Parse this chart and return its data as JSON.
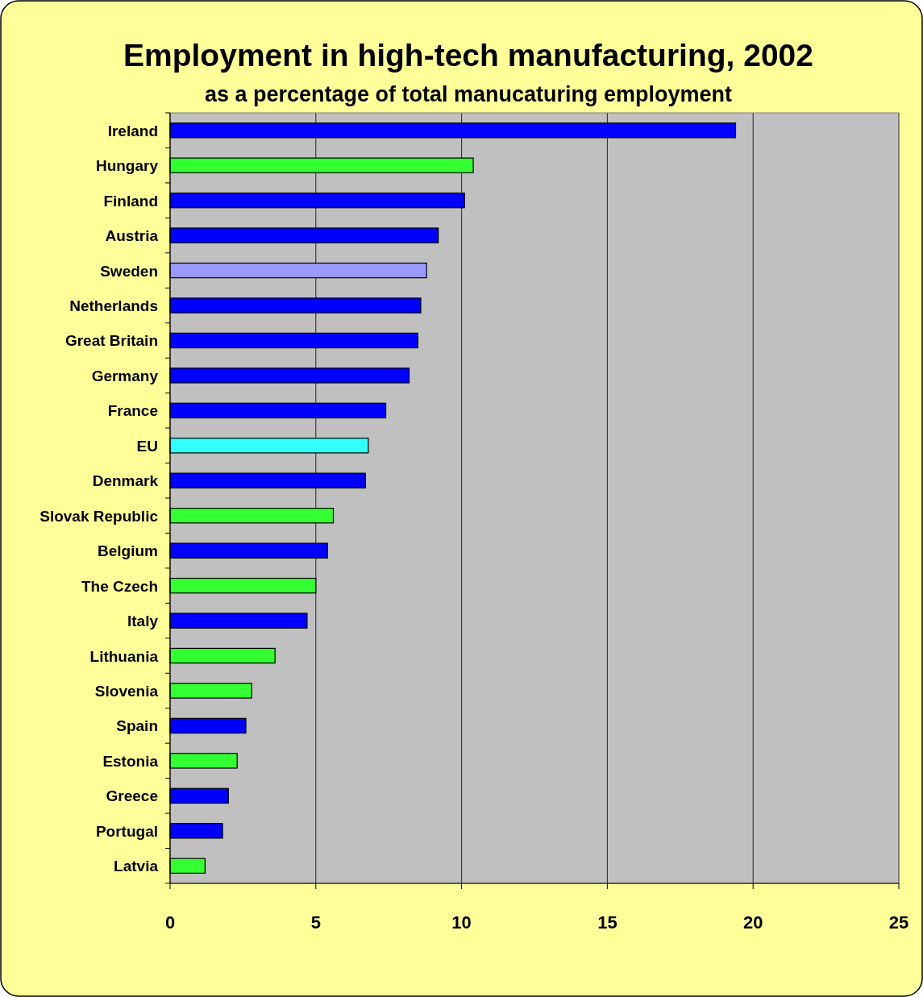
{
  "chart_data": {
    "type": "bar",
    "orientation": "horizontal",
    "title": "Employment in high-tech manufacturing, 2002",
    "subtitle": "as a percentage of total manucaturing employment",
    "categories": [
      "Ireland",
      "Hungary",
      "Finland",
      "Austria",
      "Sweden",
      "Netherlands",
      "Great Britain",
      "Germany",
      "France",
      "EU",
      "Denmark",
      "Slovak Republic",
      "Belgium",
      "The Czech",
      "Italy",
      "Lithuania",
      "Slovenia",
      "Spain",
      "Estonia",
      "Greece",
      "Portugal",
      "Latvia"
    ],
    "values": [
      19.4,
      10.4,
      10.1,
      9.2,
      8.8,
      8.6,
      8.5,
      8.2,
      7.4,
      6.8,
      6.7,
      5.6,
      5.4,
      5.0,
      4.7,
      3.6,
      2.8,
      2.6,
      2.3,
      2.0,
      1.8,
      1.2
    ],
    "colors": [
      "#0000ff",
      "#33ff33",
      "#0000ff",
      "#0000ff",
      "#9999ff",
      "#0000ff",
      "#0000ff",
      "#0000ff",
      "#0000ff",
      "#33ffff",
      "#0000ff",
      "#33ff33",
      "#0000ff",
      "#33ff33",
      "#0000ff",
      "#33ff33",
      "#33ff33",
      "#0000ff",
      "#33ff33",
      "#0000ff",
      "#0000ff",
      "#33ff33"
    ],
    "xlim": [
      0,
      25
    ],
    "xticks": [
      0,
      5,
      10,
      15,
      20,
      25
    ],
    "grid": "x"
  }
}
